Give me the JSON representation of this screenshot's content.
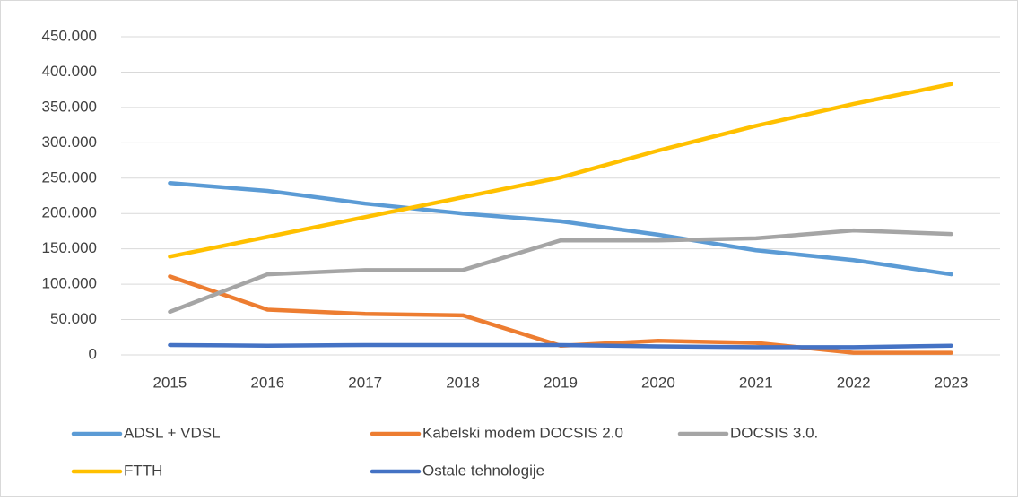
{
  "chart_data": {
    "type": "line",
    "categories": [
      "2015",
      "2016",
      "2017",
      "2018",
      "2019",
      "2020",
      "2021",
      "2022",
      "2023"
    ],
    "series": [
      {
        "name": "ADSL + VDSL",
        "color": "#5b9bd5",
        "values": [
          243000,
          232000,
          214000,
          200000,
          189000,
          170000,
          148000,
          134000,
          114000
        ]
      },
      {
        "name": "Kabelski modem DOCSIS 2.0",
        "color": "#ed7d31",
        "values": [
          111000,
          64000,
          58000,
          56000,
          13000,
          20000,
          17000,
          3000,
          3000
        ]
      },
      {
        "name": "DOCSIS 3.0.",
        "color": "#a5a5a5",
        "values": [
          61000,
          114000,
          120000,
          120000,
          162000,
          162000,
          165000,
          176000,
          171000
        ]
      },
      {
        "name": "FTTH",
        "color": "#ffc000",
        "values": [
          139000,
          167000,
          195000,
          223000,
          251000,
          289000,
          324000,
          355000,
          383000
        ]
      },
      {
        "name": "Ostale tehnologije",
        "color": "#4472c4",
        "values": [
          14000,
          13000,
          14000,
          14000,
          14000,
          12000,
          11000,
          11000,
          13000
        ]
      }
    ],
    "ylim": [
      0,
      450000
    ],
    "yticks": [
      0,
      {
        "value": 50000,
        "label": "50.000"
      },
      {
        "value": 100000,
        "label": "100.000"
      },
      {
        "value": 150000,
        "label": "150.000"
      },
      {
        "value": 200000,
        "label": "200.000"
      },
      {
        "value": 250000,
        "label": "250.000"
      },
      {
        "value": 300000,
        "label": "300.000"
      },
      {
        "value": 350000,
        "label": "350.000"
      },
      {
        "value": 400000,
        "label": "400.000"
      },
      {
        "value": 450000,
        "label": "450.000"
      }
    ],
    "grid": true,
    "legend": "bottom"
  }
}
